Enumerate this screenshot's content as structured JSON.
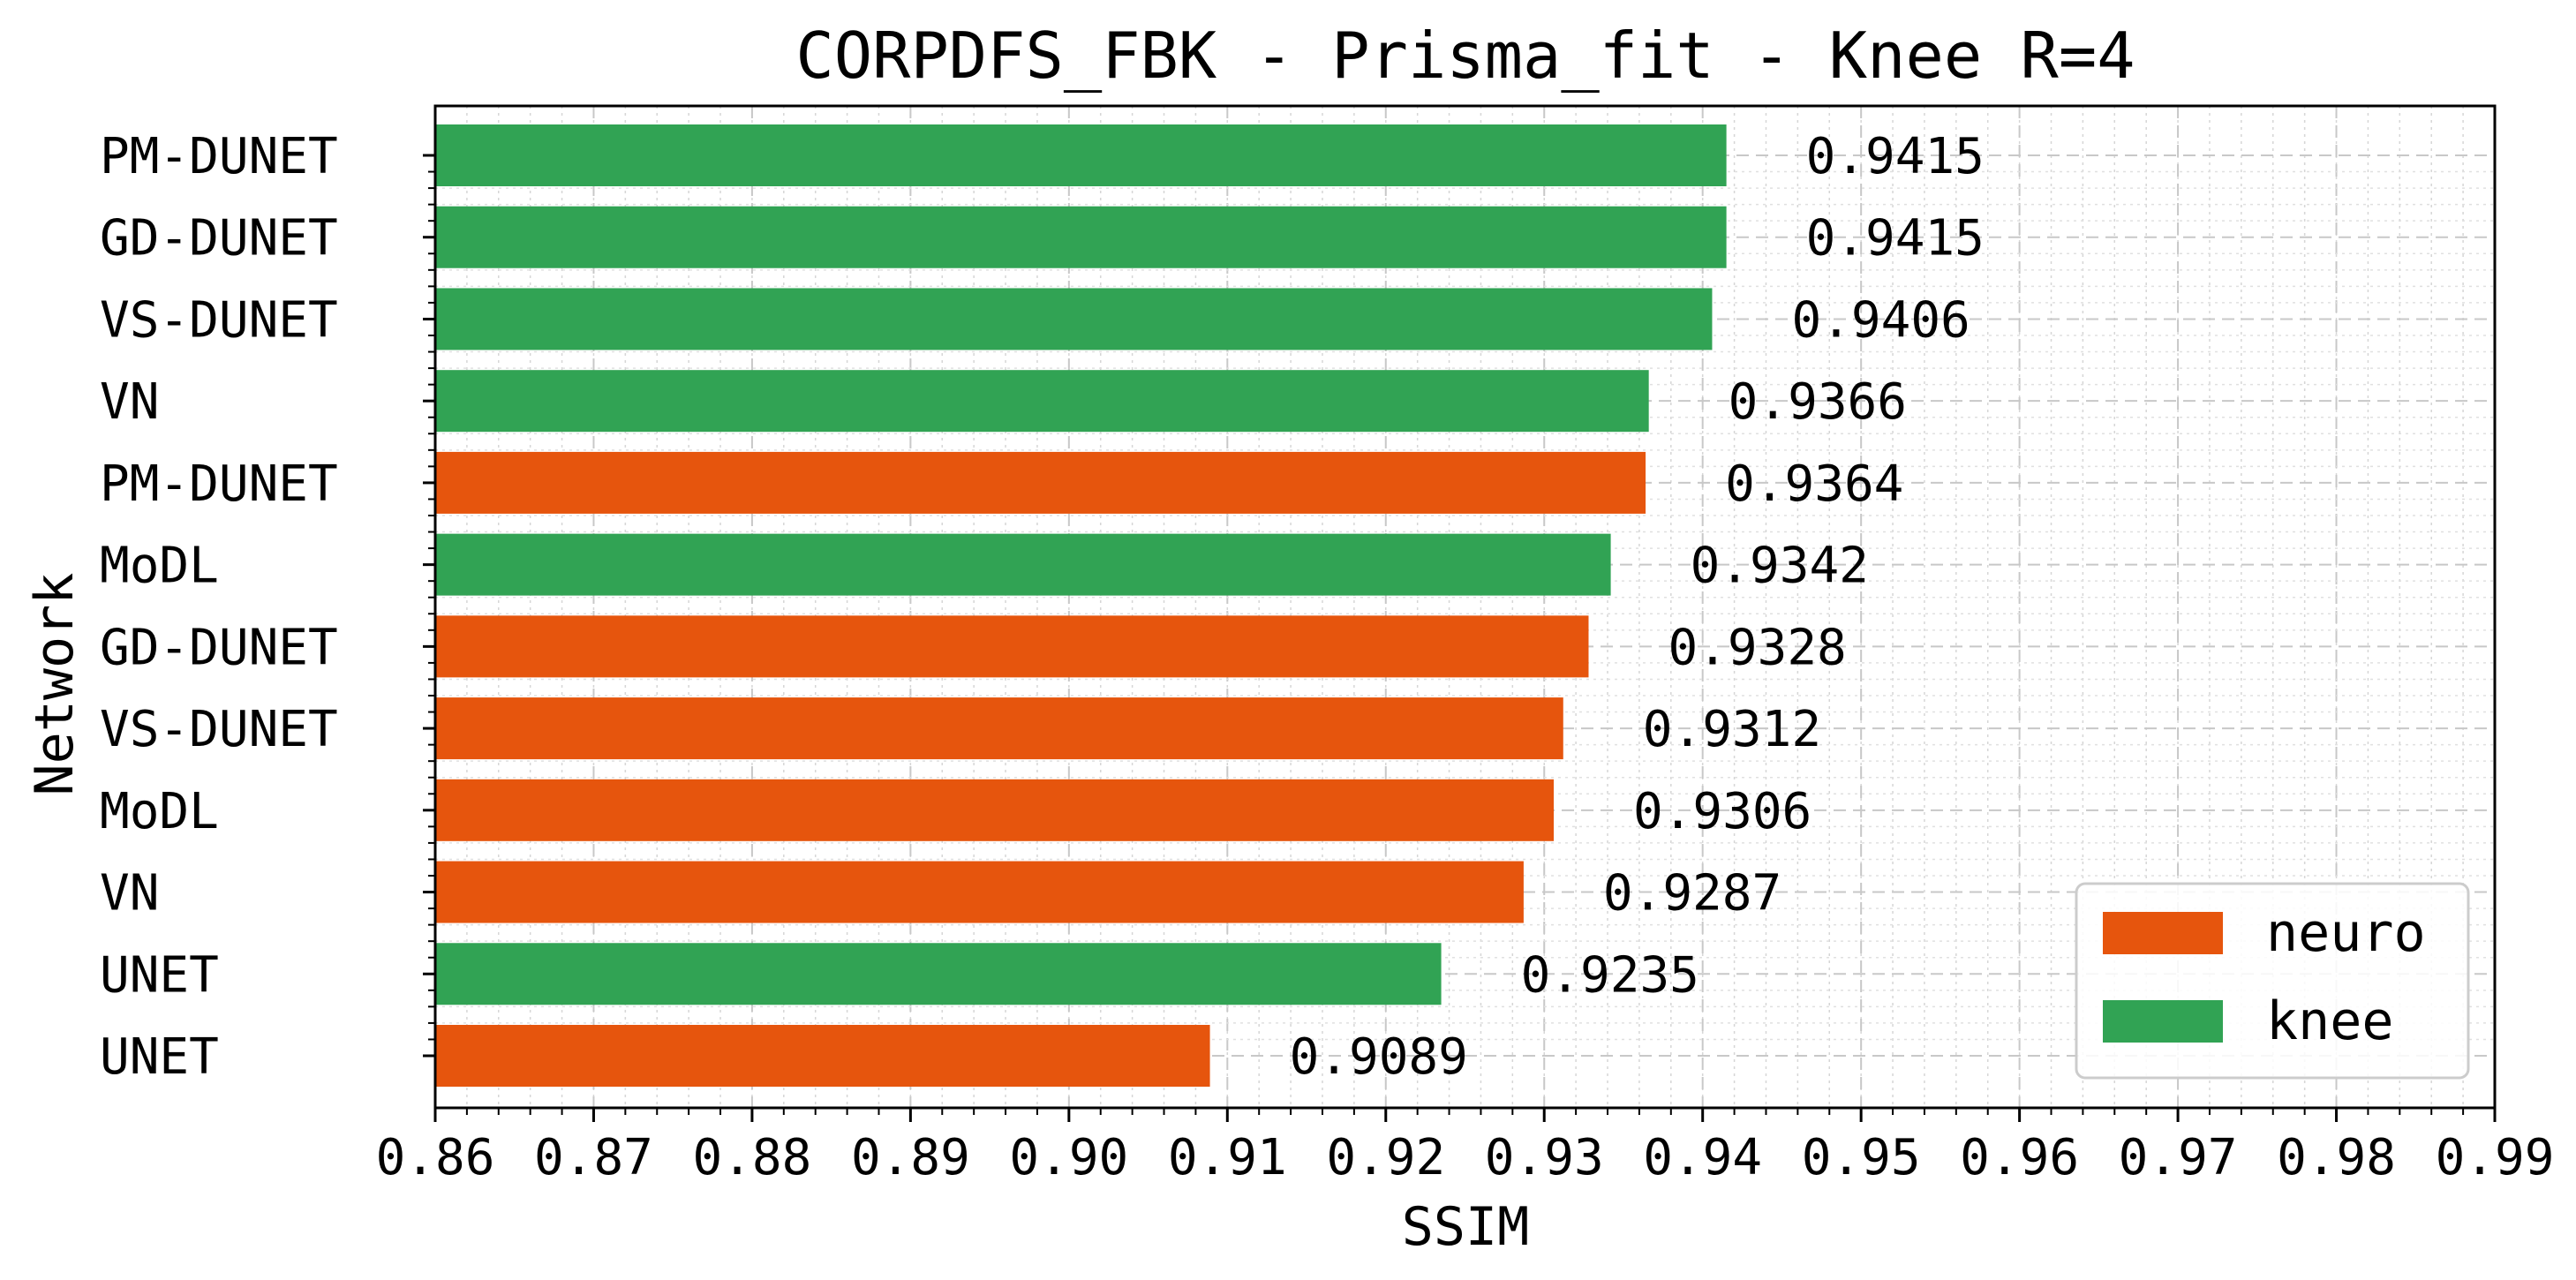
{
  "chart_data": {
    "type": "bar",
    "orientation": "horizontal",
    "title": "CORPDFS_FBK - Prisma_fit - Knee R=4",
    "xlabel": "SSIM",
    "ylabel": "Network",
    "xlim": [
      0.86,
      0.99
    ],
    "xticks": [
      "0.86",
      "0.87",
      "0.88",
      "0.89",
      "0.90",
      "0.91",
      "0.92",
      "0.93",
      "0.94",
      "0.95",
      "0.96",
      "0.97",
      "0.98",
      "0.99"
    ],
    "grid": true,
    "legend_position": "bottom-right",
    "legend": [
      {
        "name": "neuro",
        "color": "#e6550d"
      },
      {
        "name": "knee",
        "color": "#31a354"
      }
    ],
    "bars": [
      {
        "label": "PM-DUNET",
        "value": 0.9415,
        "value_label": "0.9415",
        "group": "knee"
      },
      {
        "label": "GD-DUNET",
        "value": 0.9415,
        "value_label": "0.9415",
        "group": "knee"
      },
      {
        "label": "VS-DUNET",
        "value": 0.9406,
        "value_label": "0.9406",
        "group": "knee"
      },
      {
        "label": "VN",
        "value": 0.9366,
        "value_label": "0.9366",
        "group": "knee"
      },
      {
        "label": "PM-DUNET",
        "value": 0.9364,
        "value_label": "0.9364",
        "group": "neuro"
      },
      {
        "label": "MoDL",
        "value": 0.9342,
        "value_label": "0.9342",
        "group": "knee"
      },
      {
        "label": "GD-DUNET",
        "value": 0.9328,
        "value_label": "0.9328",
        "group": "neuro"
      },
      {
        "label": "VS-DUNET",
        "value": 0.9312,
        "value_label": "0.9312",
        "group": "neuro"
      },
      {
        "label": "MoDL",
        "value": 0.9306,
        "value_label": "0.9306",
        "group": "neuro"
      },
      {
        "label": "VN",
        "value": 0.9287,
        "value_label": "0.9287",
        "group": "neuro"
      },
      {
        "label": "UNET",
        "value": 0.9235,
        "value_label": "0.9235",
        "group": "knee"
      },
      {
        "label": "UNET",
        "value": 0.9089,
        "value_label": "0.9089",
        "group": "neuro"
      }
    ]
  }
}
